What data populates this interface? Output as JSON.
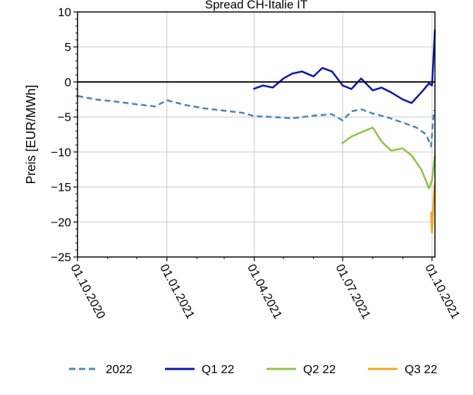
{
  "chart_data": {
    "type": "line",
    "title": "Spread CH-Italie IT",
    "xlabel": "",
    "ylabel": "Preis [EUR/MWh]",
    "ylim": [
      -25,
      10
    ],
    "yticks": [
      10,
      5,
      0,
      -5,
      -10,
      -15,
      -20,
      -25
    ],
    "ytick_labels": [
      "10",
      "5",
      "0",
      "−5",
      "−10",
      "−15",
      "−20",
      "−25"
    ],
    "xlim": [
      "2020-10-01",
      "2021-10-04"
    ],
    "xticks": [
      "2020-10-01",
      "2021-01-01",
      "2021-04-01",
      "2021-07-01",
      "2021-10-01"
    ],
    "xtick_labels": [
      "01.10.2020",
      "01.01.2021",
      "01.04.2021",
      "01.07.2021",
      "01.10.2021"
    ],
    "grid": true,
    "zero_line": true,
    "legend": "bottom",
    "series": [
      {
        "name": "2022",
        "color": "#4a86b8",
        "dash": "dashed",
        "x": [
          "2020-10-01",
          "2020-10-20",
          "2020-11-10",
          "2020-12-01",
          "2020-12-20",
          "2021-01-01",
          "2021-01-20",
          "2021-02-10",
          "2021-03-01",
          "2021-03-20",
          "2021-04-01",
          "2021-04-20",
          "2021-05-10",
          "2021-06-01",
          "2021-06-20",
          "2021-07-01",
          "2021-07-10",
          "2021-07-20",
          "2021-08-01",
          "2021-08-15",
          "2021-09-01",
          "2021-09-15",
          "2021-09-25",
          "2021-09-30",
          "2021-10-03"
        ],
        "y": [
          -2,
          -2.5,
          -2.8,
          -3.2,
          -3.5,
          -2.6,
          -3.3,
          -3.8,
          -4.1,
          -4.4,
          -4.9,
          -5.0,
          -5.2,
          -4.8,
          -4.6,
          -5.5,
          -4.2,
          -3.9,
          -4.5,
          -5.0,
          -5.8,
          -6.5,
          -7.5,
          -9.2,
          -4.0
        ]
      },
      {
        "name": "Q1 22",
        "color": "#0a17b0",
        "dash": "solid",
        "x": [
          "2021-03-31",
          "2021-04-10",
          "2021-04-20",
          "2021-05-01",
          "2021-05-10",
          "2021-05-20",
          "2021-06-01",
          "2021-06-10",
          "2021-06-20",
          "2021-07-01",
          "2021-07-10",
          "2021-07-20",
          "2021-08-01",
          "2021-08-10",
          "2021-08-20",
          "2021-09-01",
          "2021-09-10",
          "2021-09-20",
          "2021-09-28",
          "2021-10-01",
          "2021-10-04"
        ],
        "y": [
          -1.0,
          -0.5,
          -0.8,
          0.5,
          1.2,
          1.5,
          0.8,
          2.0,
          1.5,
          -0.5,
          -1.0,
          0.5,
          -1.2,
          -0.8,
          -1.5,
          -2.5,
          -3.0,
          -1.5,
          -0.2,
          -0.5,
          7.5
        ]
      },
      {
        "name": "Q2 22",
        "color": "#8cc63f",
        "dash": "solid",
        "x": [
          "2021-06-30",
          "2021-07-10",
          "2021-07-20",
          "2021-08-01",
          "2021-08-10",
          "2021-08-20",
          "2021-09-01",
          "2021-09-10",
          "2021-09-20",
          "2021-09-28",
          "2021-10-01",
          "2021-10-04"
        ],
        "y": [
          -8.8,
          -7.8,
          -7.2,
          -6.5,
          -8.5,
          -9.8,
          -9.5,
          -10.5,
          -12.5,
          -15.2,
          -14.0,
          -10.5
        ]
      },
      {
        "name": "Q3 22",
        "color": "#f5a51e",
        "dash": "solid",
        "x": [
          "2021-09-30",
          "2021-10-01",
          "2021-10-02",
          "2021-10-03",
          "2021-10-04"
        ],
        "y": [
          -18.5,
          -21.5,
          -19.0,
          -16.0,
          -14.5
        ]
      }
    ]
  }
}
